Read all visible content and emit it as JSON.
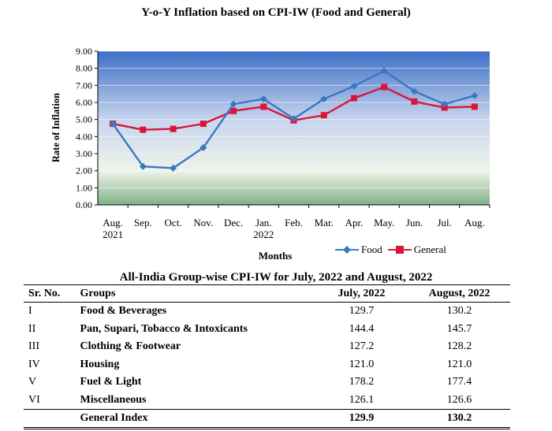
{
  "chart_data": {
    "type": "line",
    "title": "Y-o-Y Inflation based on CPI-IW (Food and General)",
    "xlabel": "Months",
    "ylabel": "Rate of Inflation",
    "categories": [
      "Aug.",
      "Sep.",
      "Oct.",
      "Nov.",
      "Dec.",
      "Jan.",
      "Feb.",
      "Mar.",
      "Apr.",
      "May.",
      "Jun.",
      "Jul.",
      "Aug."
    ],
    "category_sublabels": [
      "2021",
      "",
      "",
      "",
      "",
      "2022",
      "",
      "",
      "",
      "",
      "",
      "",
      ""
    ],
    "yticks": [
      "0.00",
      "1.00",
      "2.00",
      "3.00",
      "4.00",
      "5.00",
      "6.00",
      "7.00",
      "8.00",
      "9.00"
    ],
    "ylim": [
      0,
      9
    ],
    "grid": true,
    "legend_position": "bottom-right",
    "series": [
      {
        "name": "Food",
        "color": "#3a78c4",
        "marker": "diamond",
        "values": [
          4.75,
          2.25,
          2.15,
          3.35,
          5.9,
          6.2,
          5.05,
          6.2,
          6.95,
          7.85,
          6.65,
          5.9,
          6.4
        ]
      },
      {
        "name": "General",
        "color": "#d9163a",
        "marker": "square",
        "values": [
          4.75,
          4.4,
          4.45,
          4.75,
          5.5,
          5.75,
          4.95,
          5.25,
          6.25,
          6.9,
          6.05,
          5.7,
          5.75
        ]
      }
    ]
  },
  "table": {
    "title": "All-India Group-wise CPI-IW for July, 2022 and August, 2022",
    "headers": {
      "sr": "Sr. No.",
      "groups": "Groups",
      "jul": "July, 2022",
      "aug": "August, 2022"
    },
    "rows": [
      {
        "sr": "I",
        "group": "Food & Beverages",
        "jul": "129.7",
        "aug": "130.2"
      },
      {
        "sr": "II",
        "group": "Pan, Supari, Tobacco & Intoxicants",
        "jul": "144.4",
        "aug": "145.7"
      },
      {
        "sr": "III",
        "group": "Clothing & Footwear",
        "jul": "127.2",
        "aug": "128.2"
      },
      {
        "sr": "IV",
        "group": "Housing",
        "jul": "121.0",
        "aug": "121.0"
      },
      {
        "sr": "V",
        "group": "Fuel & Light",
        "jul": "178.2",
        "aug": "177.4"
      },
      {
        "sr": "VI",
        "group": "Miscellaneous",
        "jul": "126.1",
        "aug": "126.6"
      }
    ],
    "footer": {
      "label": "General Index",
      "jul": "129.9",
      "aug": "130.2"
    }
  }
}
